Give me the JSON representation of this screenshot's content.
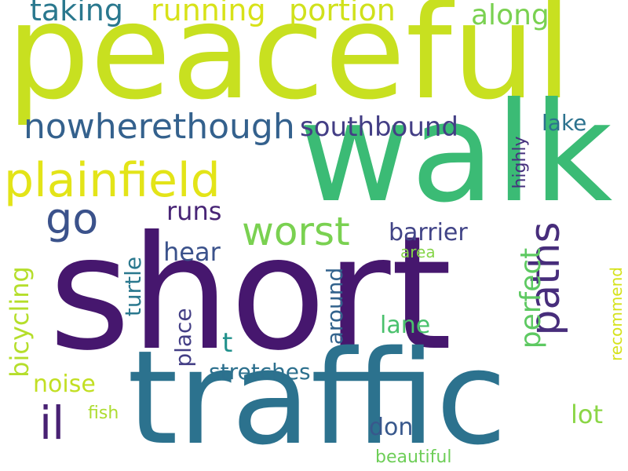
{
  "words": {
    "peaceful": {
      "text": "peaceful",
      "color": "#c8e020"
    },
    "short": {
      "text": "short",
      "color": "#46176e"
    },
    "walk": {
      "text": "walk",
      "color": "#3bbb75"
    },
    "traffic": {
      "text": "traffic",
      "color": "#2c728e"
    },
    "plainfield": {
      "text": "plainfield",
      "color": "#e3e418"
    },
    "worst": {
      "text": "worst",
      "color": "#7ad151"
    },
    "paths": {
      "text": "paths",
      "color": "#472d7b"
    },
    "nowherethough": {
      "text": "nowherethough",
      "color": "#34618d"
    },
    "go": {
      "text": "go",
      "color": "#3b528b"
    },
    "il": {
      "text": "il",
      "color": "#482173"
    },
    "taking": {
      "text": "taking",
      "color": "#2a788e"
    },
    "running": {
      "text": "running",
      "color": "#d8e219"
    },
    "portion": {
      "text": "portion",
      "color": "#d0e11c"
    },
    "along": {
      "text": "along",
      "color": "#7ad151"
    },
    "southbound": {
      "text": "southbound",
      "color": "#433e85"
    },
    "lake": {
      "text": "lake",
      "color": "#2c728e"
    },
    "highly": {
      "text": "highly",
      "color": "#46327e"
    },
    "runs": {
      "text": "runs",
      "color": "#482576"
    },
    "barrier": {
      "text": "barrier",
      "color": "#414487"
    },
    "hear": {
      "text": "hear",
      "color": "#3b528b"
    },
    "perfect": {
      "text": "perfect",
      "color": "#5ec962"
    },
    "area": {
      "text": "area",
      "color": "#86d549"
    },
    "turtle": {
      "text": "turtle",
      "color": "#2a788e"
    },
    "bicycling": {
      "text": "bicycling",
      "color": "#b5de2b"
    },
    "place": {
      "text": "place",
      "color": "#433e85"
    },
    "t": {
      "text": "t",
      "color": "#21918c"
    },
    "around": {
      "text": "around",
      "color": "#33638d"
    },
    "lane": {
      "text": "lane",
      "color": "#4ac16d"
    },
    "recommend": {
      "text": "recommend",
      "color": "#d5e21a"
    },
    "noise": {
      "text": "noise",
      "color": "#c2df23"
    },
    "stretches": {
      "text": "stretches",
      "color": "#2d708e"
    },
    "fish": {
      "text": "fish",
      "color": "#addc30"
    },
    "lot": {
      "text": "lot",
      "color": "#8bd646"
    },
    "don": {
      "text": "don",
      "color": "#38588c"
    },
    "beautiful": {
      "text": "beautiful",
      "color": "#6ece58"
    }
  }
}
